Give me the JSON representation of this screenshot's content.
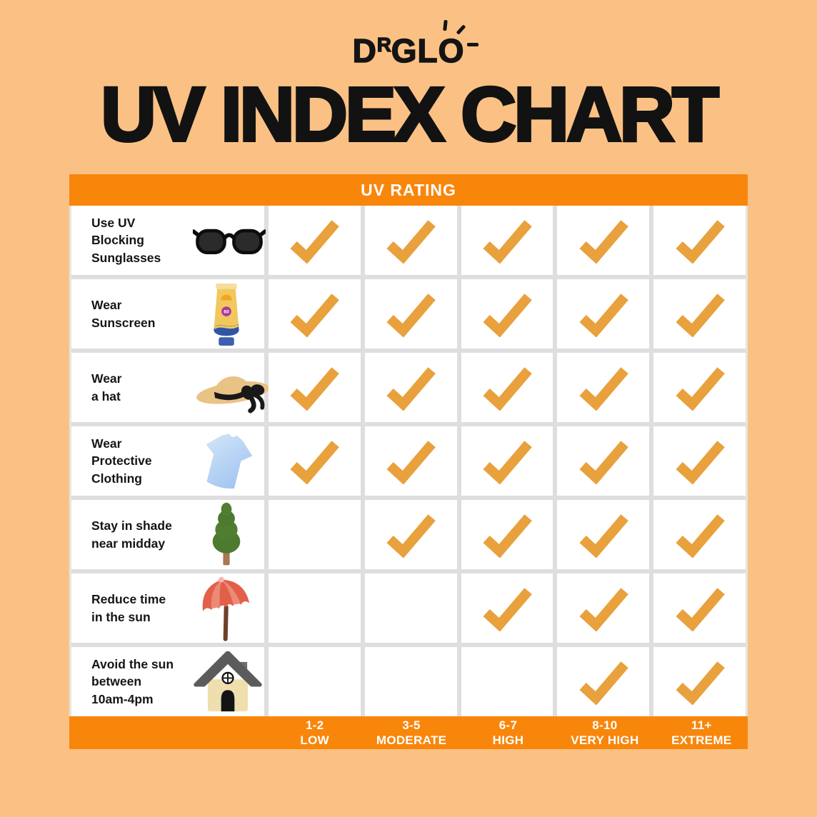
{
  "brand": {
    "prefix": "D",
    "superscript": "R",
    "suffix": "GLO"
  },
  "title": "UV INDEX CHART",
  "table": {
    "header": "UV RATING",
    "rows": [
      {
        "label": "Use UV\nBlocking\nSunglasses",
        "icon": "sunglasses-icon"
      },
      {
        "label": "Wear\nSunscreen",
        "icon": "sunscreen-icon"
      },
      {
        "label": "Wear\na hat",
        "icon": "sun-hat-icon"
      },
      {
        "label": "Wear\nProtective\nClothing",
        "icon": "tshirt-icon"
      },
      {
        "label": "Stay in shade\nnear midday",
        "icon": "tree-icon"
      },
      {
        "label": "Reduce time\nin the sun",
        "icon": "umbrella-icon"
      },
      {
        "label": "Avoid the sun\nbetween\n10am-4pm",
        "icon": "house-icon"
      }
    ],
    "columns": [
      {
        "range": "1-2",
        "level": "LOW"
      },
      {
        "range": "3-5",
        "level": "MODERATE"
      },
      {
        "range": "6-7",
        "level": "HIGH"
      },
      {
        "range": "8-10",
        "level": "VERY HIGH"
      },
      {
        "range": "11+",
        "level": "EXTREME"
      }
    ]
  },
  "colors": {
    "background": "#FBC184",
    "bar_orange": "#F8860B",
    "check_orange": "#E8A13C",
    "grid_gray": "#DEDEDE",
    "text_black": "#151515",
    "cell_white": "#FFFFFF"
  },
  "chart_data": {
    "type": "table",
    "title": "UV INDEX CHART",
    "header": "UV RATING",
    "columns": [
      "1-2 LOW",
      "3-5 MODERATE",
      "6-7 HIGH",
      "8-10 VERY HIGH",
      "11+ EXTREME"
    ],
    "rows": [
      "Use UV Blocking Sunglasses",
      "Wear Sunscreen",
      "Wear a hat",
      "Wear Protective Clothing",
      "Stay in shade near midday",
      "Reduce time in the sun",
      "Avoid the sun between 10am-4pm"
    ],
    "matrix": [
      [
        1,
        1,
        1,
        1,
        1
      ],
      [
        1,
        1,
        1,
        1,
        1
      ],
      [
        1,
        1,
        1,
        1,
        1
      ],
      [
        1,
        1,
        1,
        1,
        1
      ],
      [
        0,
        1,
        1,
        1,
        1
      ],
      [
        0,
        0,
        1,
        1,
        1
      ],
      [
        0,
        0,
        0,
        1,
        1
      ]
    ]
  }
}
